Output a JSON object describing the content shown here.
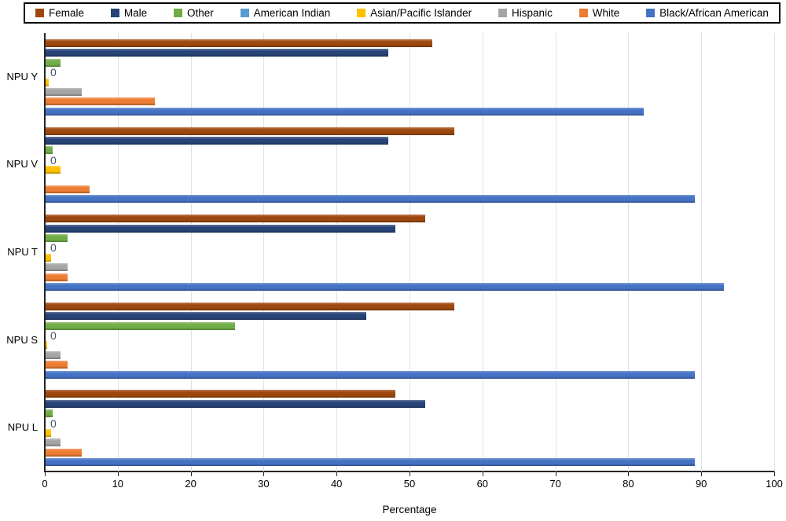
{
  "chart_data": {
    "type": "bar",
    "orientation": "horizontal",
    "title": "",
    "xlabel": "Percentage",
    "xlim": [
      0,
      100
    ],
    "xticks": [
      "0",
      "10",
      "20",
      "30",
      "40",
      "50",
      "60",
      "70",
      "80",
      "90",
      "100"
    ],
    "grid": true,
    "legend_position": "top",
    "categories": [
      "NPU Y",
      "NPU V",
      "NPU T",
      "NPU S",
      "NPU L"
    ],
    "series": [
      {
        "name": "Female",
        "color": "#9E480E",
        "values": [
          53,
          56,
          52,
          56,
          48
        ]
      },
      {
        "name": "Male",
        "color": "#264478",
        "values": [
          47,
          47,
          48,
          44,
          52
        ]
      },
      {
        "name": "Other",
        "color": "#70AD47",
        "values": [
          2,
          1,
          3,
          26,
          1
        ]
      },
      {
        "name": "American Indian",
        "color": "#5B9BD5",
        "values": [
          0,
          0,
          0,
          0,
          0
        ],
        "show_zero_label": true
      },
      {
        "name": "Asian/Pacific Islander",
        "color": "#FFC000",
        "values": [
          0.4,
          2,
          0.8,
          0.2,
          0.8
        ]
      },
      {
        "name": "Hispanic",
        "color": "#A5A5A5",
        "values": [
          5,
          0,
          3,
          2,
          2
        ]
      },
      {
        "name": "White",
        "color": "#ED7D31",
        "values": [
          15,
          6,
          3,
          3,
          5
        ]
      },
      {
        "name": "Black/African American",
        "color": "#4472C4",
        "values": [
          82,
          89,
          93,
          89,
          89
        ]
      }
    ],
    "zero_label_text": "0",
    "zero_label_color": "#44546A",
    "gridline_color": "#DCE1EA",
    "axis_color": "#262626"
  }
}
